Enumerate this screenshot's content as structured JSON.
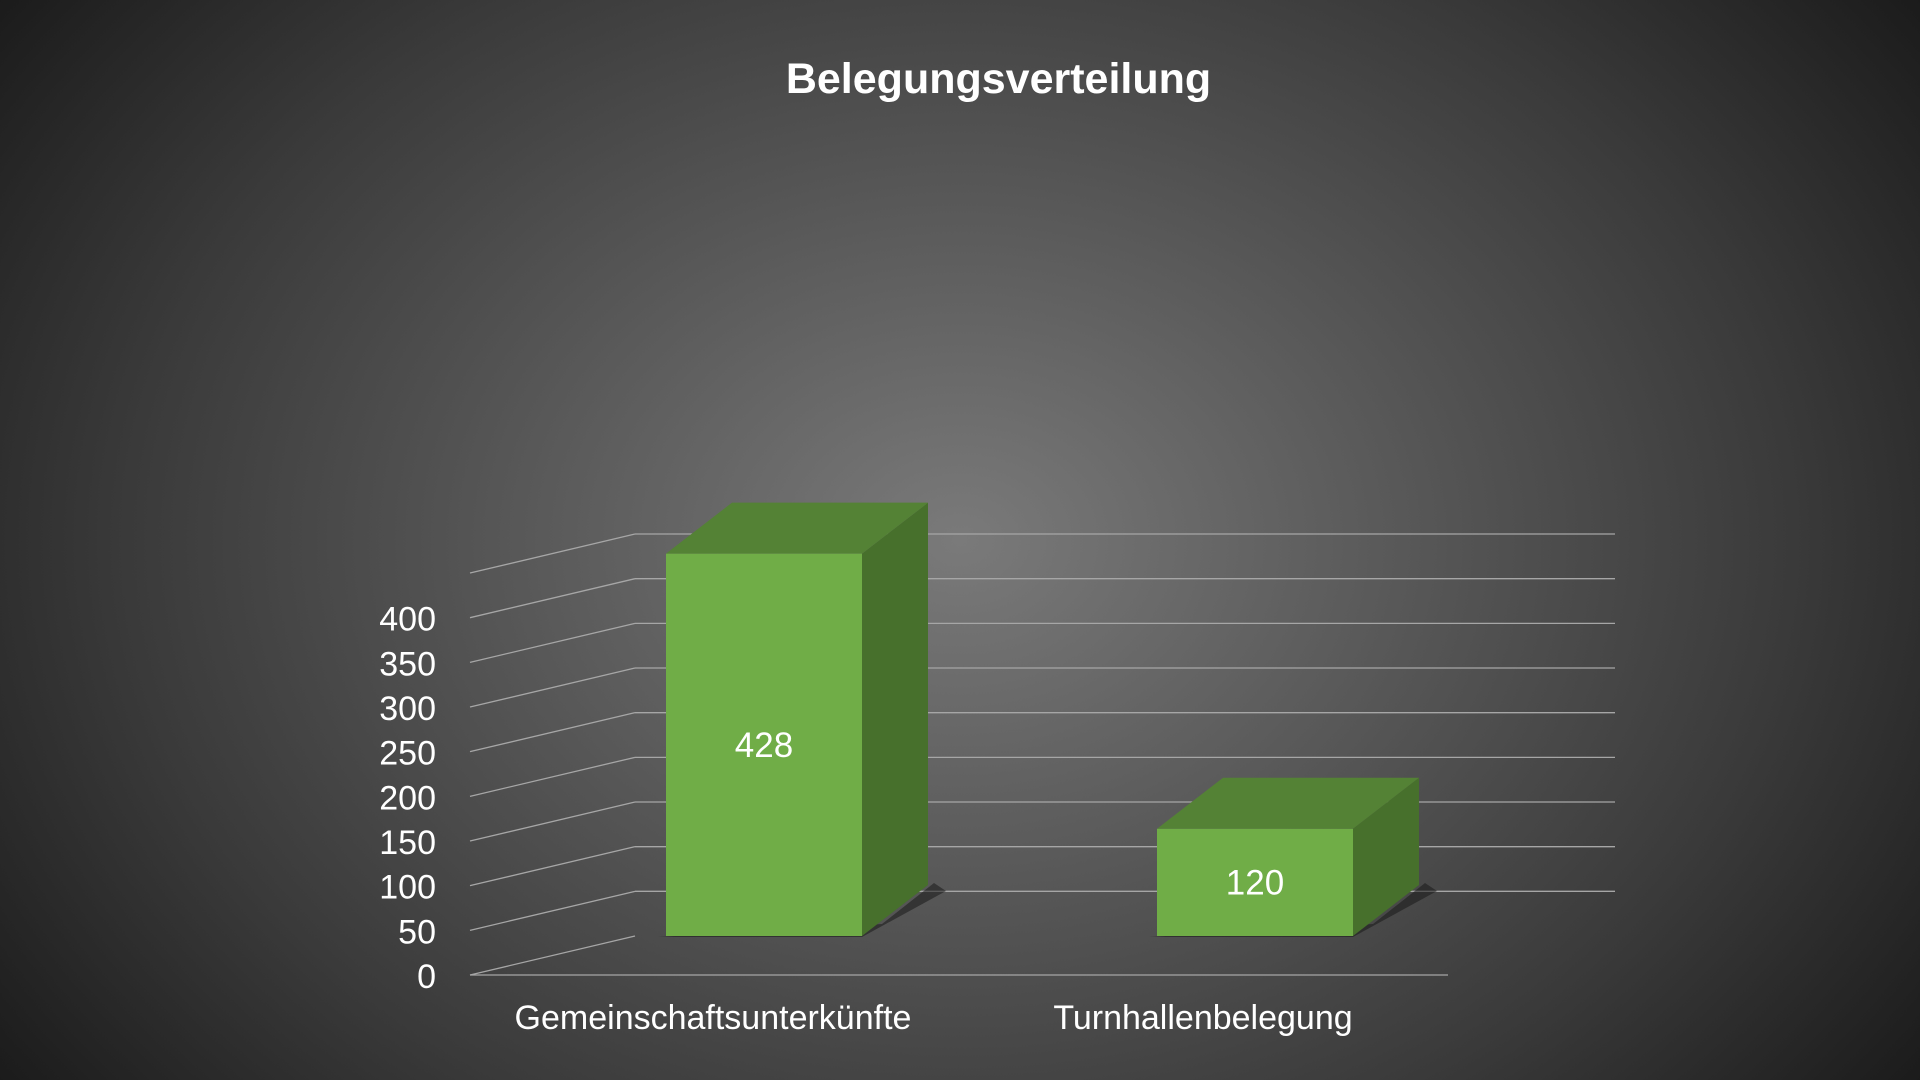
{
  "chart_data": {
    "type": "bar",
    "style": "3d-column",
    "title": "Belegungsverteilung",
    "xlabel": "",
    "ylabel": "",
    "categories": [
      "Gemeinschaftsunterkünfte",
      "Turnhallenbelegung"
    ],
    "series": [
      {
        "values": [
          428,
          120
        ]
      }
    ],
    "data_labels": [
      "428",
      "120"
    ],
    "ylim": [
      0,
      450
    ],
    "y_ticks": [
      0,
      50,
      100,
      150,
      200,
      250,
      300,
      350,
      400
    ],
    "y_tick_labels": [
      "0",
      "50",
      "100",
      "150",
      "200",
      "250",
      "300",
      "350",
      "400"
    ],
    "grid": true,
    "legend": "none",
    "colors": {
      "bar_front": "#70ad47",
      "bar_top": "#548235",
      "bar_side": "#47702c",
      "gridline": "#a6a6a6",
      "text": "#ffffff"
    }
  }
}
